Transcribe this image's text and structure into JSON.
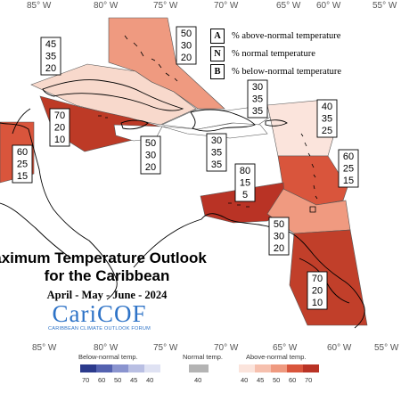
{
  "map": {
    "longitude_labels": [
      "85° W",
      "80° W",
      "75° W",
      "70° W",
      "65° W",
      "60° W",
      "55° W"
    ],
    "regions": [
      {
        "name": "bahamas",
        "above": 50,
        "normal": 30,
        "below": 20,
        "color": "#ef9a80"
      },
      {
        "name": "cuba-north",
        "above": 45,
        "normal": 35,
        "below": 20,
        "color": "#f8d9cc"
      },
      {
        "name": "jamaica",
        "above": 70,
        "normal": 20,
        "below": 10,
        "color": "#bd3a26"
      },
      {
        "name": "cayman",
        "above": 50,
        "normal": 30,
        "below": 20,
        "color": "#ffffff"
      },
      {
        "name": "hispaniola-north",
        "above": 30,
        "normal": 35,
        "below": 35,
        "color": "#ffffff"
      },
      {
        "name": "hispaniola-south",
        "above": 30,
        "normal": 35,
        "below": 35,
        "color": "#ffffff"
      },
      {
        "name": "leeward-islands",
        "above": 40,
        "normal": 35,
        "below": 25,
        "color": "#fbe4dc"
      },
      {
        "name": "windward-islands",
        "above": 60,
        "normal": 25,
        "below": 15,
        "color": "#d9553c"
      },
      {
        "name": "abc-islands",
        "above": 80,
        "normal": 15,
        "below": 5,
        "color": "#b93325"
      },
      {
        "name": "trinidad",
        "above": 50,
        "normal": 30,
        "below": 20,
        "color": "#f09a80"
      },
      {
        "name": "guianas",
        "above": 70,
        "normal": 20,
        "below": 10,
        "color": "#c13f2a"
      },
      {
        "name": "belize",
        "above": 60,
        "normal": 25,
        "below": 15,
        "color": "#d9553c"
      }
    ]
  },
  "legend_key": {
    "items": [
      {
        "letter": "A",
        "text": "% above-normal temperature"
      },
      {
        "letter": "N",
        "text": "% normal temperature"
      },
      {
        "letter": "B",
        "text": "% below-normal temperature"
      }
    ]
  },
  "title": {
    "line1": "Maximum Temperature Outlook",
    "line2": "for the Caribbean",
    "period": "April - May - June - 2024"
  },
  "logo": {
    "name": "CariCOF",
    "subtitle": "CARIBBEAN CLIMATE OUTLOOK FORUM"
  },
  "colorbar": {
    "below_label": "Below-normal temp.",
    "normal_label": "Normal temp.",
    "above_label": "Above-normal temp.",
    "below_ticks": [
      "70",
      "60",
      "50",
      "45",
      "40"
    ],
    "normal_ticks": [
      "40"
    ],
    "above_ticks": [
      "40",
      "45",
      "50",
      "60",
      "70"
    ],
    "below_colors": [
      "#2b3a8c",
      "#5462b0",
      "#8a94cf",
      "#b9bfe3",
      "#dfe2f3"
    ],
    "normal_color": "#b4b4b4",
    "above_colors": [
      "#fbe4dc",
      "#f6c0ae",
      "#ef9a80",
      "#d9553c",
      "#b93325"
    ]
  }
}
